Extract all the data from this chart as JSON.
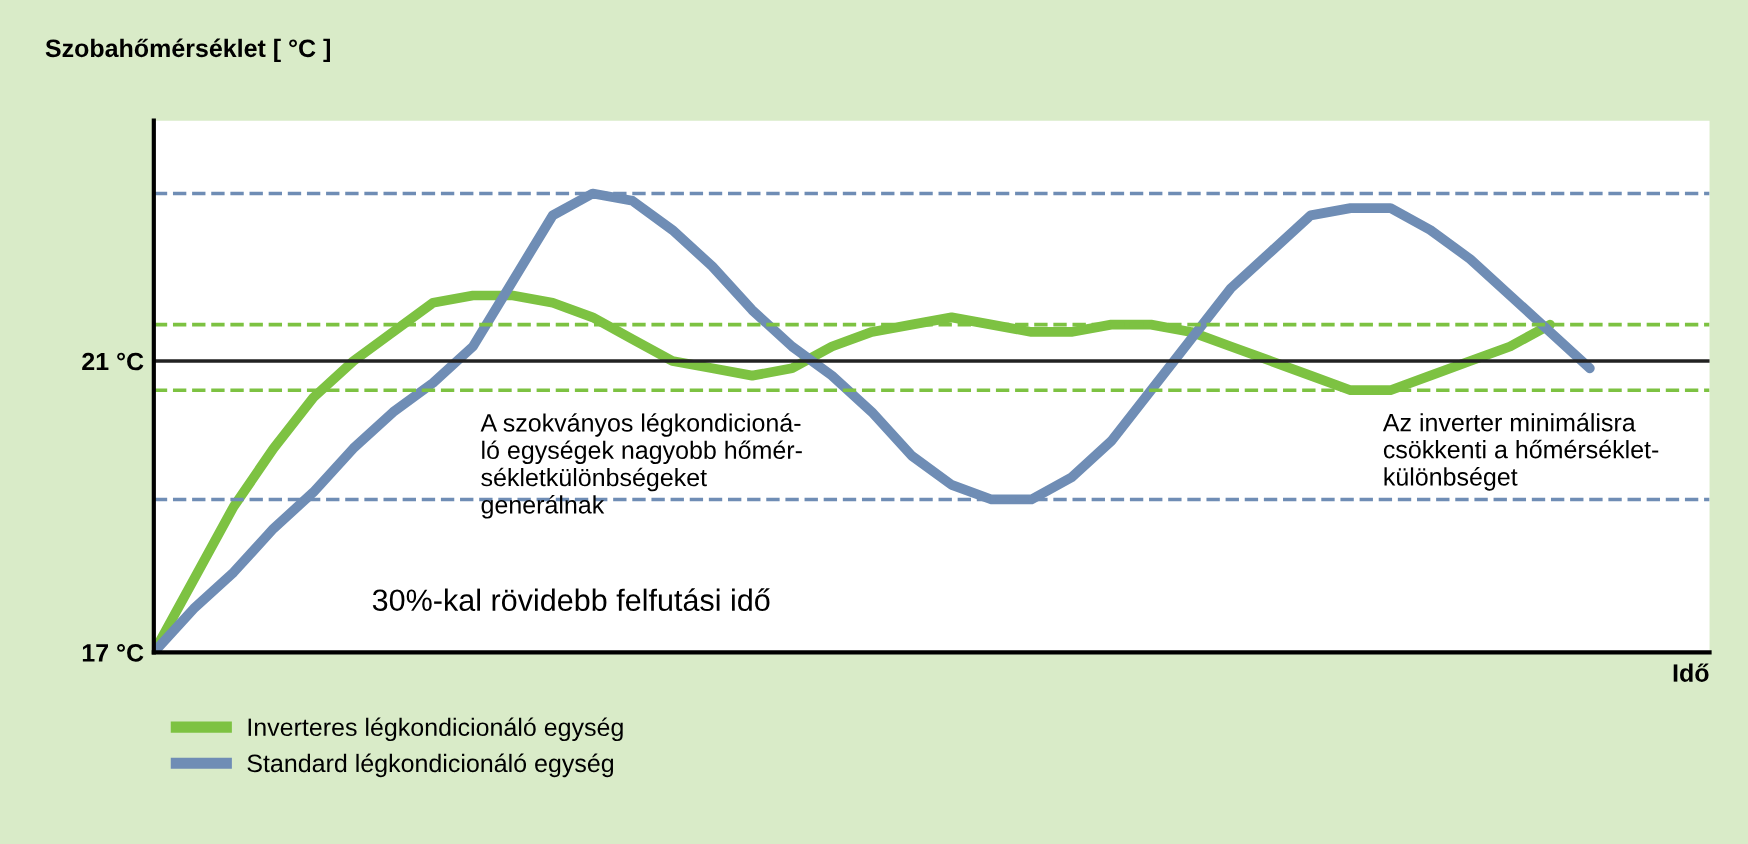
{
  "chart_data": {
    "type": "line",
    "ylabel": "Szobahőmérséklet [ °C ]",
    "xlabel": "Idő",
    "categories": [
      null,
      null,
      null,
      null,
      null,
      null,
      null,
      null,
      null,
      null,
      null,
      null,
      null,
      null,
      null,
      null,
      null,
      null,
      null,
      null,
      null,
      null,
      null,
      null,
      null,
      null,
      null,
      null,
      null,
      null,
      null,
      null,
      null,
      null,
      null,
      null,
      null,
      null
    ],
    "series": [
      {
        "name": "Inverteres légkondicionáló egység",
        "color": "#7dc242",
        "values": [
          17.0,
          18.0,
          19.0,
          19.8,
          20.5,
          21.0,
          21.4,
          21.8,
          21.9,
          21.9,
          21.8,
          21.6,
          21.3,
          21.0,
          20.9,
          20.8,
          20.9,
          21.2,
          21.4,
          21.5,
          21.6,
          21.5,
          21.4,
          21.4,
          21.5,
          21.5,
          21.4,
          21.2,
          21.0,
          20.8,
          20.6,
          20.6,
          20.8,
          21.0,
          21.2,
          21.5,
          null,
          null
        ]
      },
      {
        "name": "Standard légkondicionáló egység",
        "color": "#6f8db5",
        "values": [
          17.0,
          17.6,
          18.1,
          18.7,
          19.2,
          19.8,
          20.3,
          20.7,
          21.2,
          22.1,
          23.0,
          23.3,
          23.2,
          22.8,
          22.3,
          21.7,
          21.2,
          20.8,
          20.3,
          19.7,
          19.3,
          19.1,
          19.1,
          19.4,
          19.9,
          20.6,
          21.3,
          22.0,
          22.5,
          23.0,
          23.1,
          23.1,
          22.8,
          22.4,
          21.9,
          21.4,
          20.9,
          null
        ]
      }
    ],
    "ylim": [
      17,
      24.3
    ],
    "yticks": [
      {
        "value": 17,
        "label": "17 °C"
      },
      {
        "value": 21,
        "label": "21 °C"
      }
    ],
    "tick_labels": "y",
    "grid": false,
    "legend": "bottom left",
    "marker": "none",
    "line_style": "solid",
    "ref_lines": [
      {
        "axis": "y",
        "value": 21,
        "color": "#222222",
        "line_style": "solid"
      },
      {
        "axis": "y",
        "value": 23.3,
        "color": "#6f8db5",
        "line_style": "dashed"
      },
      {
        "axis": "y",
        "value": 19.1,
        "color": "#6f8db5",
        "line_style": "dashed"
      },
      {
        "axis": "y",
        "value": 21.5,
        "color": "#7dc242",
        "line_style": "dashed"
      },
      {
        "axis": "y",
        "value": 20.6,
        "color": "#7dc242",
        "line_style": "dashed"
      }
    ],
    "annotations": [
      "A szokványos légkondicioná-\nló egységek nagyobb hőmér-\nsékletkülönbségeket\ngenerálnak",
      "Az inverter minimálisra\ncsökkenti a hőmérséklet-\nkülönbséget",
      "30%-kal rövidebb felfutási idő"
    ]
  }
}
